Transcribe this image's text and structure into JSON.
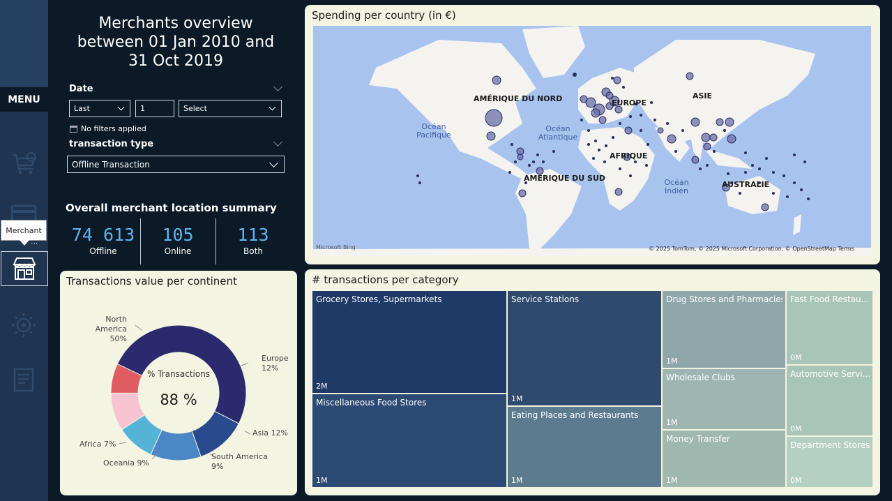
{
  "sidebar": {
    "menu_label": "MENU",
    "tooltip": "Merchant",
    "more": "...",
    "icons": [
      "cart-icon",
      "card-icon",
      "store-icon",
      "gear-icon",
      "report-icon"
    ]
  },
  "title": "Merchants overview between  01 Jan 2010 and 31 Oct 2019",
  "filters": {
    "date_label": "Date",
    "date_mode": "Last",
    "date_count": "1",
    "date_unit": "Select",
    "no_filters": "No filters applied",
    "type_label": "transaction type",
    "type_value": "Offline Transaction"
  },
  "summary": {
    "title": "Overall merchant location summary",
    "kpis": [
      {
        "value": "74 613",
        "label": "Offline"
      },
      {
        "value": "105",
        "label": "Online"
      },
      {
        "value": "113",
        "label": "Both"
      }
    ]
  },
  "map": {
    "title": "Spending per country (in €)",
    "labels": {
      "na": "AMÉRIQUE DU NORD",
      "eu": "EUROPE",
      "asia": "ASIE",
      "af": "AFRIQUE",
      "sa": "AMÉRIQUE DU SUD",
      "au": "AUSTRALIE",
      "pac": "Océan Pacifique",
      "atl": "Océan Atlantique",
      "ind": "Océan Indien"
    },
    "bing": "Microsoft Bing",
    "credit": "© 2025 TomTom, © 2025 Microsoft Corporation, © OpenStreetMap  Terms"
  },
  "donut": {
    "title": "Transactions value per continent",
    "center_label": "% Transactions",
    "center_value": "88 %",
    "colors": {
      "na": "#2c2a6f",
      "eu": "#2a4a8e",
      "asia": "#4a87c4",
      "sa": "#56b3d8",
      "oc": "#f7c3d1",
      "af": "#e05c63"
    }
  },
  "chart_data": [
    {
      "type": "pie",
      "title": "Transactions value per continent",
      "categories": [
        "North America",
        "Europe",
        "Asia",
        "South America",
        "Oceania",
        "Africa"
      ],
      "values": [
        50,
        12,
        12,
        9,
        9,
        7
      ],
      "value_labels": [
        "50%",
        "12%",
        "12%",
        "9%",
        "9%",
        "7%"
      ]
    },
    {
      "type": "table",
      "title": "# transactions per category",
      "categories": [
        "Grocery Stores, Supermarkets",
        "Miscellaneous Food Stores",
        "Service Stations",
        "Eating Places and Restaurants",
        "Drug Stores and Pharmacies",
        "Wholesale Clubs",
        "Money Transfer",
        "Fast Food Restau...",
        "Automotive Servi...",
        "Department Stores"
      ],
      "value_labels": [
        "2M",
        "1M",
        "1M",
        "1M",
        "1M",
        "1M",
        "1M",
        "0M",
        "0M",
        "0M"
      ]
    }
  ],
  "treemap": {
    "title": "# transactions per category"
  }
}
